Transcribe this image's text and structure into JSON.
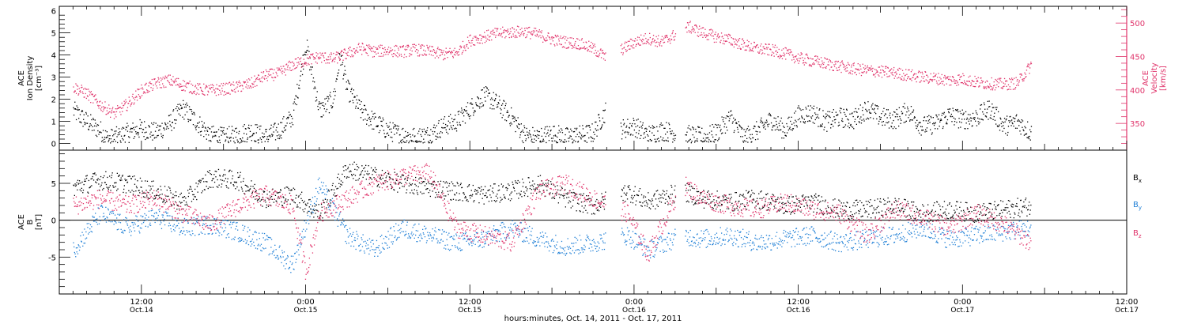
{
  "chart_data": [
    {
      "type": "scatter",
      "name_hint": "upper-panel",
      "y_left": {
        "label_lines": [
          "ACE",
          "Ion Density",
          "[cm⁻³]"
        ],
        "ylim": [
          -0.3,
          6.2
        ],
        "ticks": [
          0,
          1,
          2,
          3,
          4,
          5,
          6
        ],
        "color": "#000000"
      },
      "y_right": {
        "label_lines": [
          "ACE",
          "Velocity",
          "[km/s]"
        ],
        "ylim": [
          310,
          525
        ],
        "ticks": [
          350,
          400,
          450,
          500
        ],
        "color": "#e0336a"
      },
      "series": [
        {
          "name": "Ion Density",
          "axis": "left",
          "color": "#000000",
          "points": [
            [
              7.0,
              1.5
            ],
            [
              8.0,
              1.0
            ],
            [
              9.0,
              0.6
            ],
            [
              9.5,
              0.2
            ],
            [
              10.0,
              0.3
            ],
            [
              11.0,
              0.5
            ],
            [
              12.0,
              0.7
            ],
            [
              13.0,
              0.5
            ],
            [
              14.0,
              0.9
            ],
            [
              15.0,
              1.6
            ],
            [
              16.0,
              1.0
            ],
            [
              17.0,
              0.4
            ],
            [
              18.0,
              0.3
            ],
            [
              19.0,
              0.4
            ],
            [
              20.0,
              0.6
            ],
            [
              21.0,
              0.3
            ],
            [
              22.0,
              0.6
            ],
            [
              23.0,
              1.2
            ],
            [
              23.5,
              2.8
            ],
            [
              24.0,
              4.5
            ],
            [
              24.5,
              3.0
            ],
            [
              25.0,
              1.5
            ],
            [
              26.0,
              2.0
            ],
            [
              26.5,
              4.0
            ],
            [
              27.0,
              2.5
            ],
            [
              28.0,
              1.5
            ],
            [
              29.0,
              1.0
            ],
            [
              30.0,
              0.6
            ],
            [
              31.0,
              0.4
            ],
            [
              32.0,
              0.3
            ],
            [
              33.0,
              0.4
            ],
            [
              34.0,
              0.8
            ],
            [
              35.0,
              1.0
            ],
            [
              36.0,
              1.6
            ],
            [
              37.0,
              2.2
            ],
            [
              38.0,
              1.8
            ],
            [
              39.0,
              1.2
            ],
            [
              40.0,
              0.4
            ],
            [
              41.0,
              0.3
            ],
            [
              42.0,
              0.5
            ],
            [
              43.0,
              0.3
            ],
            [
              44.0,
              0.4
            ],
            [
              45.0,
              0.5
            ],
            [
              46.0,
              1.6
            ],
            [
              46.5,
              0.6
            ],
            [
              48.0,
              0.8
            ],
            [
              49.0,
              0.4
            ],
            [
              50.0,
              0.6
            ],
            [
              53.0,
              0.3
            ],
            [
              54.0,
              0.5
            ],
            [
              55.0,
              1.2
            ],
            [
              56.0,
              0.3
            ],
            [
              57.0,
              0.6
            ],
            [
              58.0,
              1.1
            ],
            [
              59.0,
              0.6
            ],
            [
              60.0,
              1.3
            ],
            [
              61.0,
              1.4
            ],
            [
              62.0,
              1.0
            ],
            [
              63.0,
              1.2
            ],
            [
              64.0,
              1.1
            ],
            [
              65.0,
              1.6
            ],
            [
              66.0,
              1.2
            ],
            [
              67.0,
              1.1
            ],
            [
              68.0,
              1.5
            ],
            [
              69.0,
              0.8
            ],
            [
              70.0,
              0.9
            ],
            [
              71.0,
              1.3
            ],
            [
              72.0,
              1.1
            ],
            [
              73.0,
              1.2
            ],
            [
              74.0,
              1.6
            ],
            [
              75.0,
              0.8
            ],
            [
              76.0,
              1.0
            ],
            [
              77.0,
              0.5
            ]
          ]
        },
        {
          "name": "Velocity",
          "axis": "right",
          "color": "#e0336a",
          "points": [
            [
              7.0,
              405
            ],
            [
              8.0,
              395
            ],
            [
              9.0,
              378
            ],
            [
              10.0,
              365
            ],
            [
              11.0,
              380
            ],
            [
              12.0,
              400
            ],
            [
              13.0,
              410
            ],
            [
              14.0,
              415
            ],
            [
              15.0,
              408
            ],
            [
              16.0,
              402
            ],
            [
              17.0,
              400
            ],
            [
              18.0,
              402
            ],
            [
              19.0,
              405
            ],
            [
              20.0,
              410
            ],
            [
              21.0,
              422
            ],
            [
              22.0,
              425
            ],
            [
              23.0,
              438
            ],
            [
              24.0,
              445
            ],
            [
              25.0,
              450
            ],
            [
              26.0,
              447
            ],
            [
              27.0,
              455
            ],
            [
              28.0,
              463
            ],
            [
              29.0,
              458
            ],
            [
              30.0,
              460
            ],
            [
              31.0,
              458
            ],
            [
              32.0,
              461
            ],
            [
              33.0,
              458
            ],
            [
              34.0,
              454
            ],
            [
              35.0,
              456
            ],
            [
              36.0,
              475
            ],
            [
              37.0,
              480
            ],
            [
              38.0,
              485
            ],
            [
              39.0,
              487
            ],
            [
              40.0,
              488
            ],
            [
              41.0,
              483
            ],
            [
              42.0,
              476
            ],
            [
              43.0,
              472
            ],
            [
              44.0,
              470
            ],
            [
              45.0,
              462
            ],
            [
              46.0,
              448
            ],
            [
              48.0,
              472
            ],
            [
              49.0,
              478
            ],
            [
              50.0,
              472
            ],
            [
              52.0,
              495
            ],
            [
              53.0,
              486
            ],
            [
              54.0,
              480
            ],
            [
              55.0,
              475
            ],
            [
              56.0,
              468
            ],
            [
              57.0,
              462
            ],
            [
              58.0,
              460
            ],
            [
              59.0,
              455
            ],
            [
              60.0,
              448
            ],
            [
              61.0,
              444
            ],
            [
              62.0,
              440
            ],
            [
              63.0,
              436
            ],
            [
              64.0,
              432
            ],
            [
              65.0,
              430
            ],
            [
              66.0,
              428
            ],
            [
              67.0,
              426
            ],
            [
              68.0,
              423
            ],
            [
              69.0,
              420
            ],
            [
              70.0,
              418
            ],
            [
              71.0,
              415
            ],
            [
              72.0,
              417
            ],
            [
              73.0,
              412
            ],
            [
              74.0,
              410
            ],
            [
              75.0,
              409
            ],
            [
              76.0,
              411
            ],
            [
              77.0,
              438
            ]
          ]
        }
      ],
      "gaps_hours": [
        [
          45.9,
          47.0
        ],
        [
          51.0,
          51.7
        ]
      ]
    },
    {
      "type": "scatter",
      "name_hint": "lower-panel",
      "y_left": {
        "label_lines": [
          "ACE",
          "B",
          "[nT]"
        ],
        "ylim": [
          -10,
          9.5
        ],
        "ticks": [
          -5,
          0,
          5
        ]
      },
      "zero_line": true,
      "legend_position": "right",
      "series": [
        {
          "name": "B",
          "sub": "x",
          "color": "#000000",
          "points": [
            [
              7.0,
              4.5
            ],
            [
              9.0,
              5.5
            ],
            [
              11.0,
              5.0
            ],
            [
              13.0,
              4.0
            ],
            [
              15.0,
              2.5
            ],
            [
              17.0,
              5.8
            ],
            [
              19.0,
              5.5
            ],
            [
              21.0,
              3.0
            ],
            [
              23.0,
              3.5
            ],
            [
              25.0,
              1.0
            ],
            [
              27.0,
              7.0
            ],
            [
              29.0,
              6.0
            ],
            [
              31.0,
              5.0
            ],
            [
              33.0,
              4.5
            ],
            [
              35.0,
              4.0
            ],
            [
              37.0,
              3.5
            ],
            [
              39.0,
              4.0
            ],
            [
              41.0,
              5.0
            ],
            [
              43.0,
              3.0
            ],
            [
              45.0,
              2.0
            ],
            [
              47.5,
              4.0
            ],
            [
              49.0,
              2.5
            ],
            [
              51.5,
              4.0
            ],
            [
              53.0,
              3.0
            ],
            [
              55.0,
              2.5
            ],
            [
              57.0,
              3.0
            ],
            [
              59.0,
              2.0
            ],
            [
              61.0,
              2.5
            ],
            [
              63.0,
              1.5
            ],
            [
              65.0,
              1.5
            ],
            [
              67.0,
              2.0
            ],
            [
              69.0,
              1.0
            ],
            [
              71.0,
              1.5
            ],
            [
              73.0,
              1.0
            ],
            [
              75.0,
              1.5
            ],
            [
              77.0,
              2.0
            ]
          ]
        },
        {
          "name": "B",
          "sub": "y",
          "color": "#1f7fd6",
          "points": [
            [
              7.0,
              -4.0
            ],
            [
              9.0,
              1.0
            ],
            [
              11.0,
              -1.0
            ],
            [
              13.0,
              0.5
            ],
            [
              15.0,
              -1.0
            ],
            [
              17.0,
              -0.5
            ],
            [
              19.0,
              -1.5
            ],
            [
              21.0,
              -3.0
            ],
            [
              23.0,
              -6.0
            ],
            [
              25.0,
              5.0
            ],
            [
              27.0,
              -2.0
            ],
            [
              29.0,
              -4.0
            ],
            [
              31.0,
              -1.0
            ],
            [
              33.0,
              -2.0
            ],
            [
              35.0,
              -3.0
            ],
            [
              37.0,
              -2.5
            ],
            [
              39.0,
              -1.0
            ],
            [
              41.0,
              -2.5
            ],
            [
              43.0,
              -3.5
            ],
            [
              45.0,
              -3.0
            ],
            [
              47.5,
              -2.0
            ],
            [
              49.0,
              -4.0
            ],
            [
              51.5,
              -2.0
            ],
            [
              53.0,
              -2.5
            ],
            [
              55.0,
              -2.0
            ],
            [
              57.0,
              -3.0
            ],
            [
              59.0,
              -2.5
            ],
            [
              61.0,
              -2.0
            ],
            [
              63.0,
              -3.0
            ],
            [
              65.0,
              -2.5
            ],
            [
              67.0,
              -2.0
            ],
            [
              69.0,
              -1.0
            ],
            [
              71.0,
              -2.5
            ],
            [
              73.0,
              -2.0
            ],
            [
              75.0,
              -1.5
            ],
            [
              77.0,
              -1.0
            ]
          ]
        },
        {
          "name": "B",
          "sub": "z",
          "color": "#e0336a",
          "points": [
            [
              7.0,
              2.0
            ],
            [
              9.0,
              3.0
            ],
            [
              11.0,
              2.0
            ],
            [
              13.0,
              3.0
            ],
            [
              15.0,
              1.0
            ],
            [
              17.0,
              -0.5
            ],
            [
              19.0,
              2.0
            ],
            [
              21.0,
              3.5
            ],
            [
              23.0,
              2.0
            ],
            [
              24.0,
              -7.0
            ],
            [
              25.0,
              1.0
            ],
            [
              27.0,
              3.0
            ],
            [
              29.0,
              5.0
            ],
            [
              31.0,
              6.0
            ],
            [
              33.0,
              6.5
            ],
            [
              35.0,
              -1.0
            ],
            [
              37.0,
              -2.0
            ],
            [
              39.0,
              -3.0
            ],
            [
              41.0,
              4.0
            ],
            [
              43.0,
              5.0
            ],
            [
              45.0,
              3.0
            ],
            [
              47.5,
              1.0
            ],
            [
              49.0,
              -4.5
            ],
            [
              51.5,
              5.0
            ],
            [
              53.0,
              3.0
            ],
            [
              55.0,
              2.0
            ],
            [
              57.0,
              1.5
            ],
            [
              59.0,
              2.5
            ],
            [
              61.0,
              1.5
            ],
            [
              63.0,
              1.0
            ],
            [
              65.0,
              -2.0
            ],
            [
              67.0,
              1.5
            ],
            [
              69.0,
              0.5
            ],
            [
              71.0,
              -1.0
            ],
            [
              73.0,
              1.0
            ],
            [
              75.0,
              -0.5
            ],
            [
              77.0,
              -3.0
            ]
          ]
        }
      ],
      "gaps_hours": [
        [
          45.9,
          47.0
        ],
        [
          51.0,
          51.7
        ]
      ]
    }
  ],
  "x_axis": {
    "xlim_hours": [
      6.0,
      84.0
    ],
    "major_ticks": [
      {
        "h": 12,
        "time": "12:00",
        "date": "Oct.14"
      },
      {
        "h": 24,
        "time": "0:00",
        "date": "Oct.15"
      },
      {
        "h": 36,
        "time": "12:00",
        "date": "Oct.15"
      },
      {
        "h": 48,
        "time": "0:00",
        "date": "Oct.16"
      },
      {
        "h": 60,
        "time": "12:00",
        "date": "Oct.16"
      },
      {
        "h": 72,
        "time": "0:00",
        "date": "Oct.17"
      },
      {
        "h": 84,
        "time": "12:00",
        "date": "Oct.17"
      }
    ],
    "label": "hours:minutes, Oct. 14, 2011 - Oct. 17, 2011"
  }
}
